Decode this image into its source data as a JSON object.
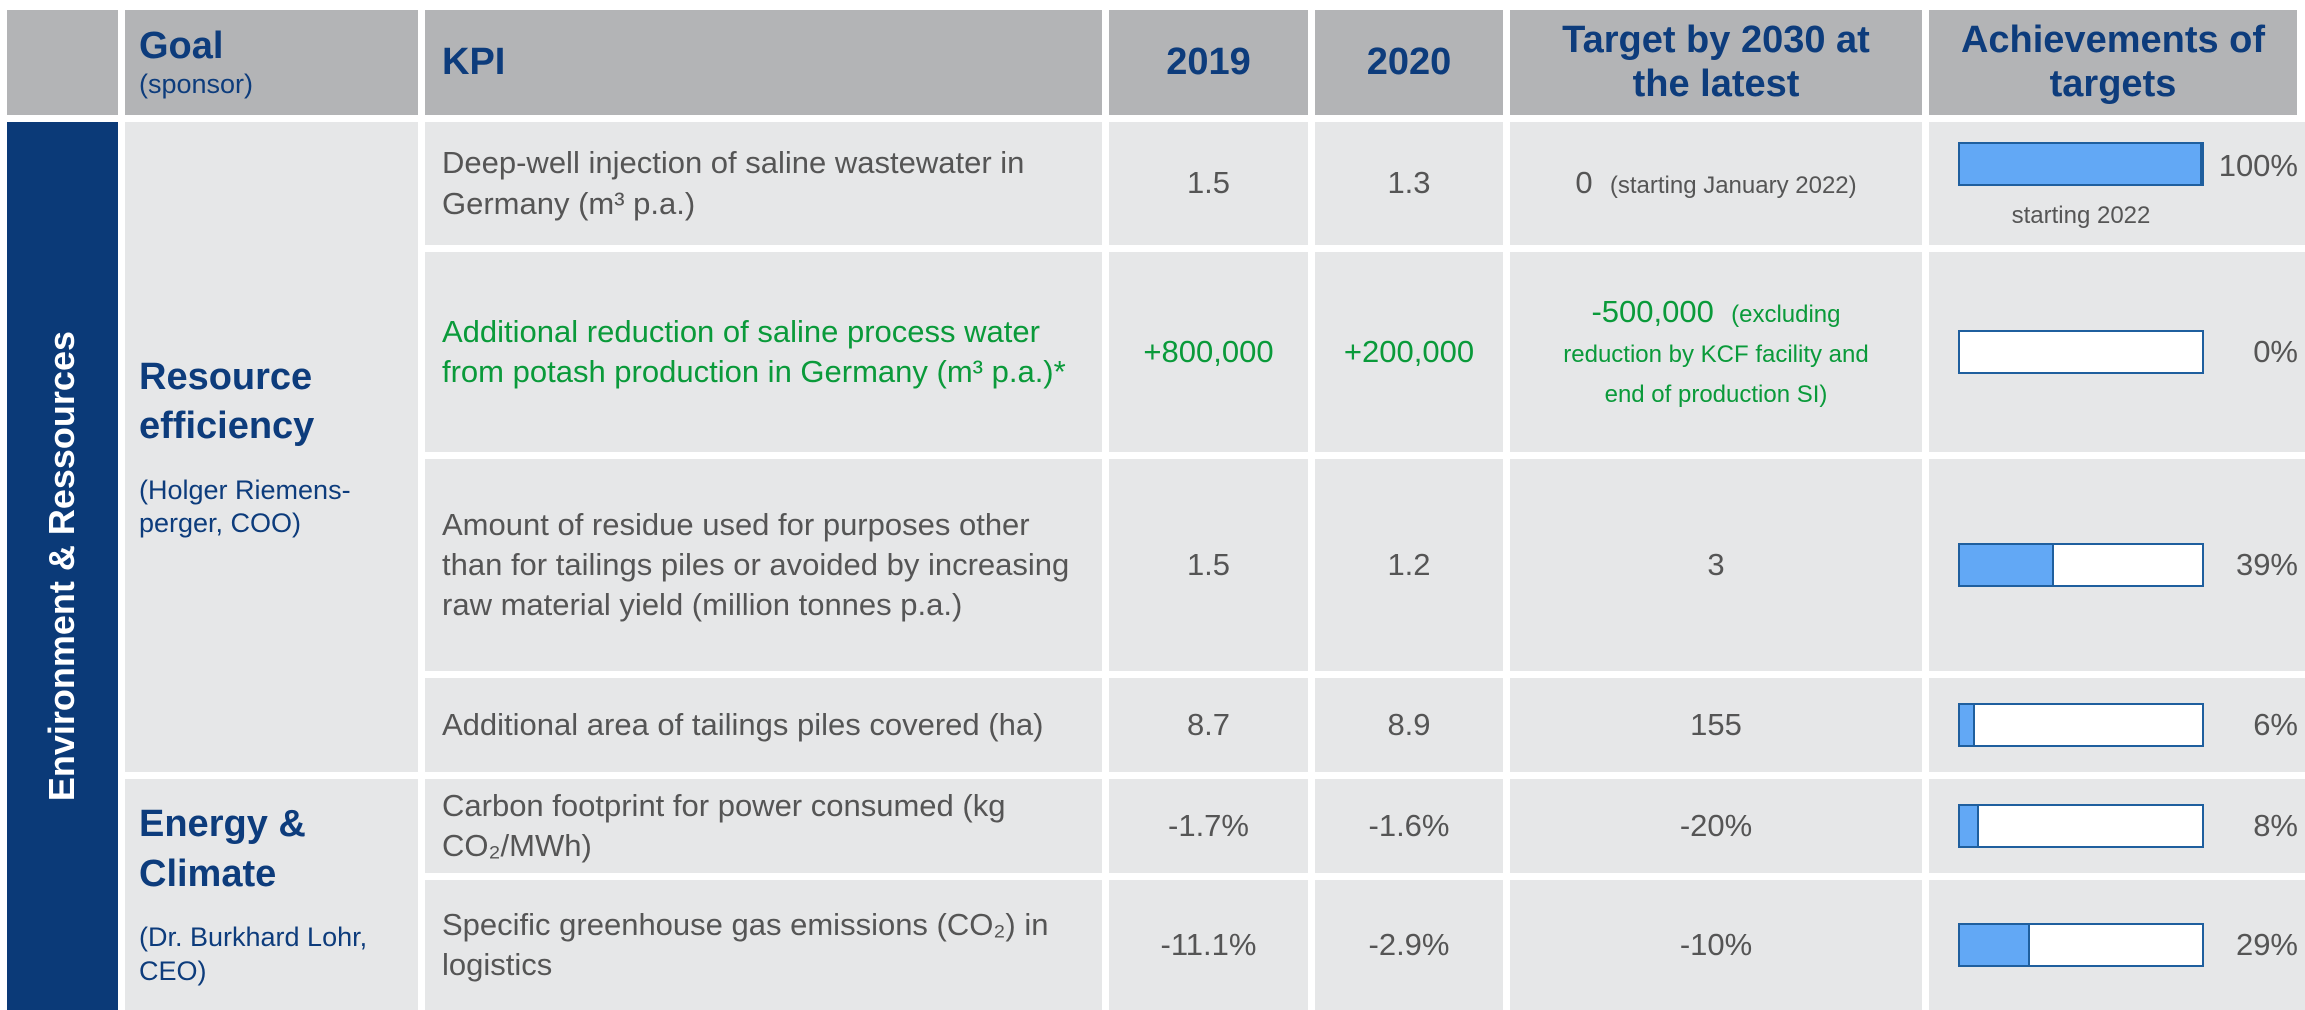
{
  "header": {
    "goal": "Goal",
    "goal_sub": "(sponsor)",
    "kpi": "KPI",
    "col_2019": "2019",
    "col_2020": "2020",
    "target": "Target by 2030 at the latest",
    "achievement": "Achievements of targets"
  },
  "category": "Environment & Ressources",
  "groups": [
    {
      "goal": "Resource efficiency",
      "sponsor": "(Holger Riemens-perger, COO)",
      "rows": [
        {
          "kpi": "Deep-well injection of saline wastewater in Germany (m³ p.a.)",
          "v2019": "1.5",
          "v2020": "1.3",
          "target": "0",
          "target_note": "(starting January 2022)",
          "achievement": {
            "value": 100,
            "label": "100%"
          },
          "achievement_note": "starting 2022"
        },
        {
          "kpi": "Additional reduction of saline process water from potash production in Germany (m³ p.a.)*",
          "v2019": "+800,000",
          "v2020": "+200,000",
          "target": "-500,000",
          "target_note": "(excluding reduction by KCF facility and end of production SI)",
          "achievement": {
            "value": 0,
            "label": "0%"
          },
          "color": "#0a9a3a"
        },
        {
          "kpi": "Amount of residue used for purposes other than for tailings piles or avoided by increasing raw material yield (million tonnes p.a.)",
          "v2019": "1.5",
          "v2020": "1.2",
          "target": "3",
          "achievement": {
            "value": 39,
            "label": "39%"
          }
        },
        {
          "kpi": "Additional area of tailings piles covered (ha)",
          "v2019": "8.7",
          "v2020": "8.9",
          "target": "155",
          "achievement": {
            "value": 6,
            "label": "6%"
          }
        }
      ]
    },
    {
      "goal": "Energy & Climate",
      "sponsor": "(Dr. Burkhard Lohr, CEO)",
      "rows": [
        {
          "kpi": "Carbon footprint for power consumed (kg CO₂/MWh)",
          "v2019": "-1.7%",
          "v2020": "-1.6%",
          "target": "-20%",
          "achievement": {
            "value": 8,
            "label": "8%"
          }
        },
        {
          "kpi": "Specific greenhouse gas emissions (CO₂) in logistics",
          "v2019": "-11.1%",
          "v2020": "-2.9%",
          "target": "-10%",
          "achievement": {
            "value": 29,
            "label": "29%"
          }
        }
      ]
    }
  ]
}
